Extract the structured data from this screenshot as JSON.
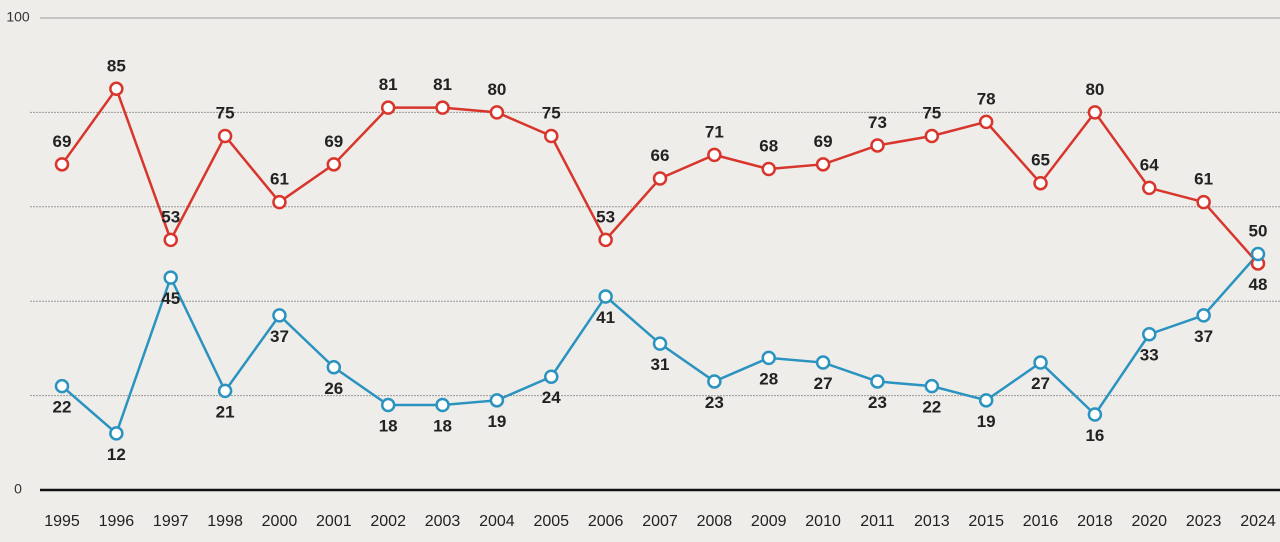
{
  "chart_data": {
    "type": "line",
    "categories": [
      "1995",
      "1996",
      "1997",
      "1998",
      "2000",
      "2001",
      "2002",
      "2003",
      "2004",
      "2005",
      "2006",
      "2007",
      "2008",
      "2009",
      "2010",
      "2011",
      "2013",
      "2015",
      "2016",
      "2018",
      "2020",
      "2023",
      "2024"
    ],
    "series": [
      {
        "color": "#d8362c",
        "values": [
          69,
          85,
          53,
          75,
          61,
          69,
          81,
          81,
          80,
          75,
          53,
          66,
          71,
          68,
          69,
          73,
          75,
          78,
          65,
          80,
          64,
          61,
          48
        ]
      },
      {
        "color": "#2b93bf",
        "values": [
          22,
          12,
          45,
          21,
          37,
          26,
          18,
          18,
          19,
          24,
          41,
          31,
          23,
          28,
          27,
          23,
          22,
          19,
          27,
          16,
          33,
          37,
          50
        ]
      }
    ],
    "ylim": [
      0,
      100
    ],
    "yticks": [
      0,
      100
    ],
    "gridlines": [
      20,
      40,
      60,
      80
    ],
    "grid": true
  }
}
